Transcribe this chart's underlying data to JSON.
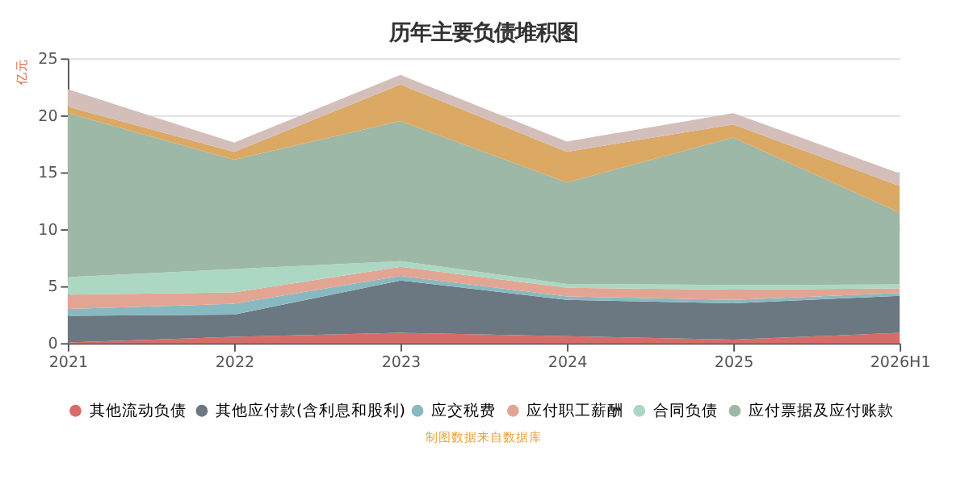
{
  "chart_data": {
    "type": "area",
    "title": "历年主要负债堆积图",
    "ylabel": "亿元",
    "stacked": true,
    "categories": [
      "2021",
      "2022",
      "2023",
      "2024",
      "2025",
      "2026H1"
    ],
    "ylim": [
      0,
      25
    ],
    "yticks": [
      0,
      5,
      10,
      15,
      20,
      25
    ],
    "grid": "y",
    "legend": "bottom",
    "series": [
      {
        "name": "其他流动负债",
        "color": "#d96b66",
        "values": [
          0.05,
          0.55,
          0.9,
          0.6,
          0.3,
          0.9
        ]
      },
      {
        "name": "其他应付款(含利息和股利)",
        "color": "#6b7781",
        "values": [
          2.35,
          1.95,
          4.6,
          3.2,
          3.2,
          3.25
        ]
      },
      {
        "name": "应交税费",
        "color": "#89b9c0",
        "values": [
          0.6,
          0.95,
          0.4,
          0.3,
          0.3,
          0.25
        ]
      },
      {
        "name": "应付职工薪酬",
        "color": "#e3a593",
        "values": [
          1.25,
          1.0,
          0.8,
          0.75,
          0.9,
          0.4
        ]
      },
      {
        "name": "合同负债",
        "color": "#acd7c3",
        "values": [
          1.55,
          2.05,
          0.5,
          0.35,
          0.4,
          0.35
        ]
      },
      {
        "name": "应付票据及应付账款",
        "color": "#9db8a6",
        "values": [
          14.4,
          9.6,
          12.3,
          8.9,
          12.95,
          6.3
        ]
      },
      {
        "color": "#dba963",
        "values": [
          0.55,
          0.7,
          3.2,
          2.7,
          1.15,
          2.35
        ]
      },
      {
        "color": "#d3beba",
        "values": [
          1.55,
          0.8,
          0.85,
          0.9,
          1.0,
          1.1
        ]
      }
    ],
    "annotations": [
      "制图数据来自数据库"
    ]
  }
}
